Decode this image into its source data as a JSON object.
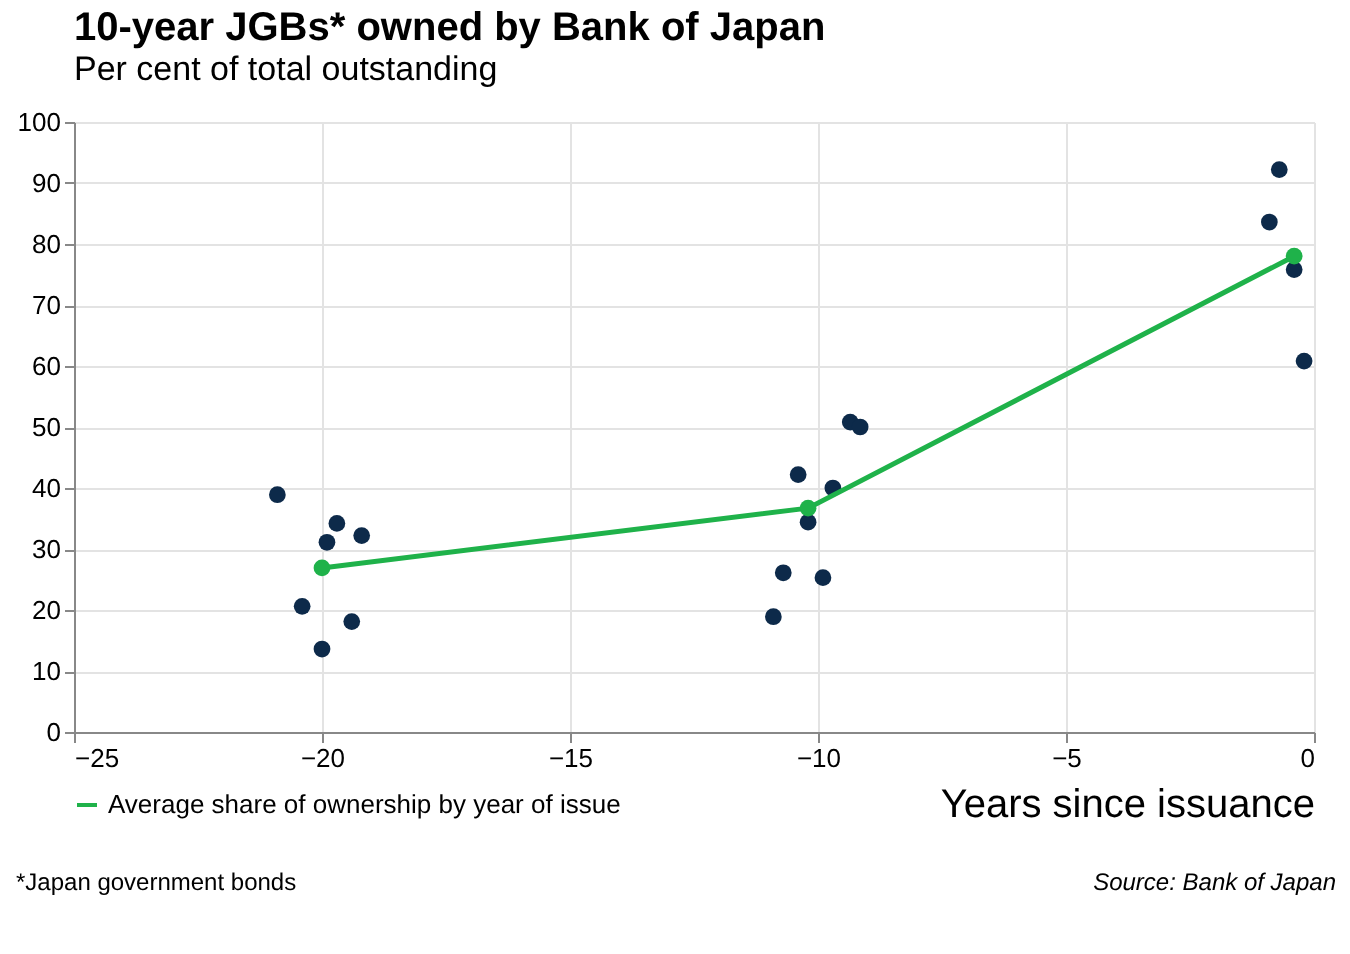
{
  "chart_data": {
    "type": "scatter",
    "title": "10-year JGBs* owned by Bank of Japan",
    "subtitle": "Per cent of total outstanding",
    "xlabel": "Years since issuance",
    "series": [
      {
        "type": "scatter",
        "color": "#0d2a4a",
        "x": [
          -20.9,
          -19.7,
          -19.9,
          -19.2,
          -20.4,
          -19.4,
          -20.0,
          -9.35,
          -9.15,
          -10.4,
          -9.7,
          -10.2,
          -10.7,
          -9.9,
          -10.9,
          -0.7,
          -0.9,
          -0.4,
          -0.2
        ],
        "values": [
          38.9,
          34.2,
          31.1,
          32.2,
          20.6,
          18.1,
          13.6,
          50.8,
          50.0,
          42.2,
          40.0,
          34.4,
          26.1,
          25.3,
          18.9,
          92.2,
          83.6,
          75.8,
          60.8
        ]
      },
      {
        "type": "line",
        "name": "Average share of ownership by year of issue",
        "color": "#1fb24a",
        "marker": "circle",
        "x": [
          -20.0,
          -10.2,
          -0.4
        ],
        "values": [
          26.9,
          36.7,
          78.0
        ]
      }
    ],
    "xlim": [
      -25,
      0
    ],
    "xticks": [
      -25,
      -20,
      -15,
      -10,
      -5,
      0
    ],
    "ylim": [
      0,
      100
    ],
    "yticks": [
      0,
      10,
      20,
      30,
      40,
      50,
      60,
      70,
      80,
      90,
      100
    ],
    "grid": true,
    "legend": "bottom left",
    "annotations": [
      "*Japan government bonds",
      "Source: Bank of Japan"
    ]
  }
}
